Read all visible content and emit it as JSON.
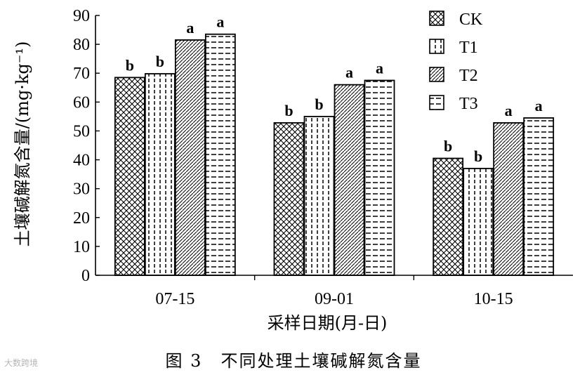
{
  "chart_data": {
    "type": "bar",
    "categories": [
      "07-15",
      "09-01",
      "10-15"
    ],
    "series": [
      {
        "name": "CK",
        "pattern": "crosshatch",
        "values": [
          68.5,
          52.8,
          40.5
        ],
        "labels": [
          "b",
          "b",
          "b"
        ]
      },
      {
        "name": "T1",
        "pattern": "vdash",
        "values": [
          69.8,
          55.0,
          37.0
        ],
        "labels": [
          "b",
          "b",
          "b"
        ]
      },
      {
        "name": "T2",
        "pattern": "diagonal",
        "values": [
          81.5,
          66.0,
          52.8
        ],
        "labels": [
          "a",
          "a",
          "a"
        ]
      },
      {
        "name": "T3",
        "pattern": "hdash",
        "values": [
          83.5,
          67.5,
          54.5
        ],
        "labels": [
          "a",
          "a",
          "a"
        ]
      }
    ],
    "ylim": [
      0,
      90
    ],
    "yticks": [
      0,
      10,
      20,
      30,
      40,
      50,
      60,
      70,
      80,
      90
    ],
    "xlabel": "采样日期(月-日)",
    "ylabel": "土壤碱解氮含量/(mg·kg⁻¹)",
    "legend_position": "top-right",
    "grid": false
  },
  "caption": "图 3　不同处理土壤碱解氮含量",
  "watermark": "大数跨境"
}
